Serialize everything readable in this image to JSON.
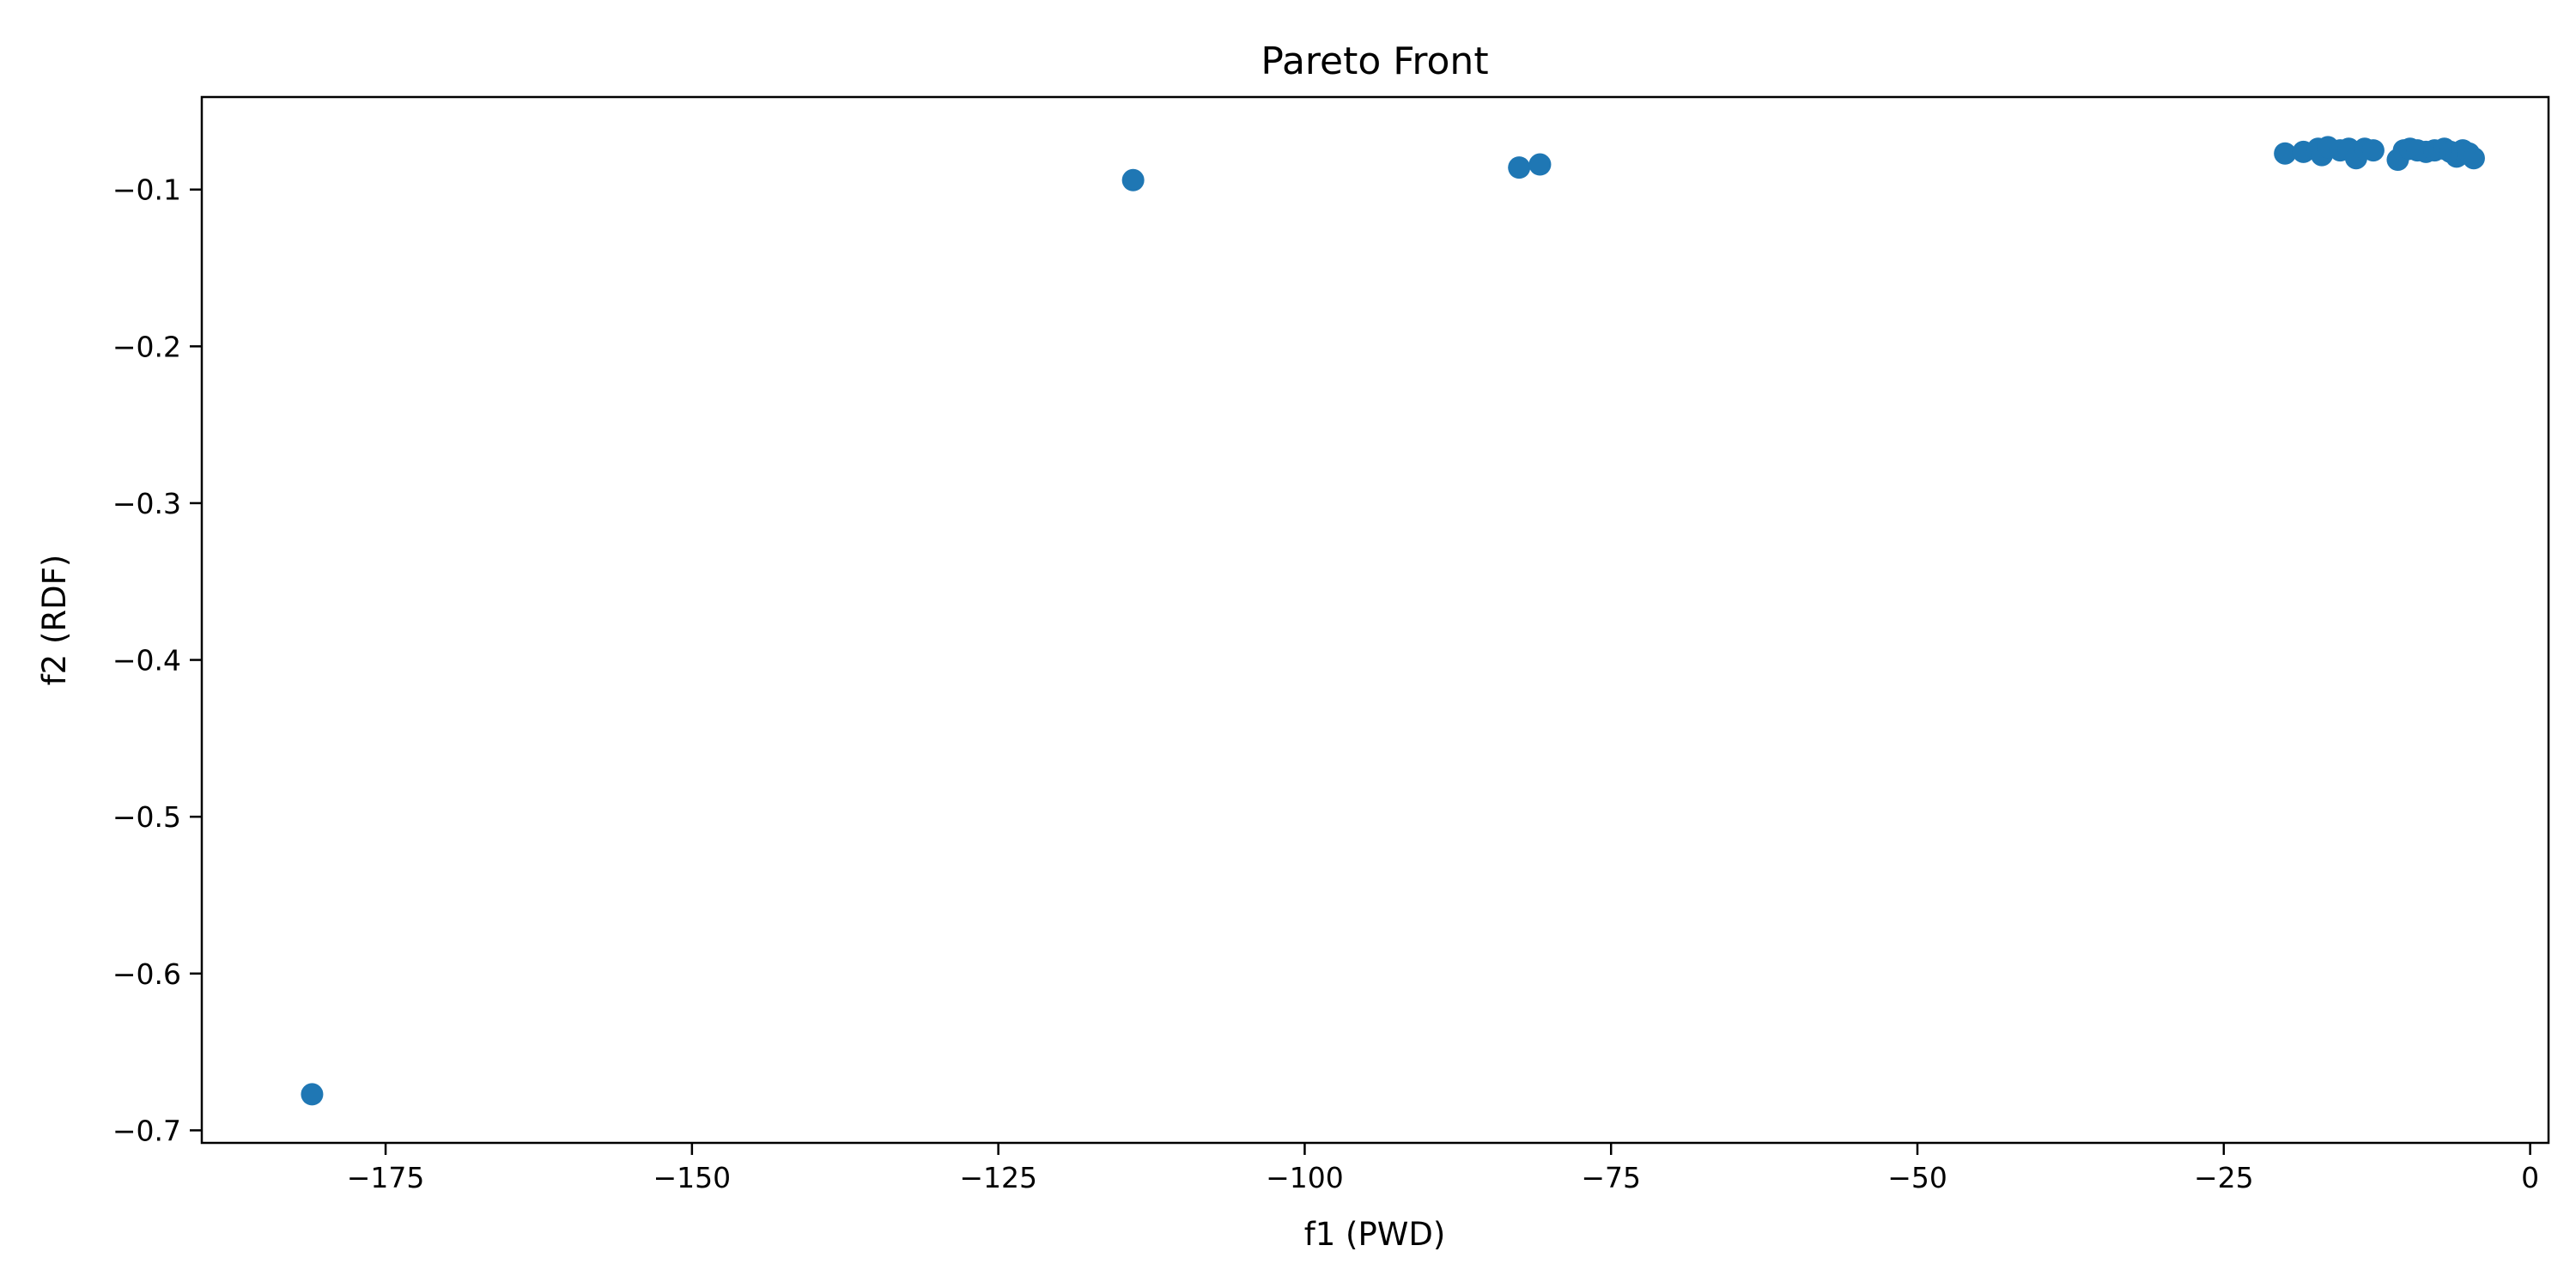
{
  "chart_data": {
    "type": "scatter",
    "title": "Pareto Front",
    "xlabel": "f1 (PWD)",
    "ylabel": "f2 (RDF)",
    "xlim": [
      -190,
      1.5
    ],
    "ylim": [
      -0.708,
      -0.041
    ],
    "xticks": [
      -175,
      -150,
      -125,
      -100,
      -75,
      -50,
      -25,
      0
    ],
    "yticks": [
      -0.1,
      -0.2,
      -0.3,
      -0.4,
      -0.5,
      -0.6,
      -0.7
    ],
    "xtick_labels": [
      "−175",
      "−150",
      "−125",
      "−100",
      "−75",
      "−50",
      "−25",
      "0"
    ],
    "ytick_labels": [
      "−0.1",
      "−0.2",
      "−0.3",
      "−0.4",
      "−0.5",
      "−0.6",
      "−0.7"
    ],
    "grid": false,
    "marker_color": "#1f77b4",
    "series": [
      {
        "points": [
          {
            "x": -181.0,
            "y": -0.677
          },
          {
            "x": -114.0,
            "y": -0.094
          },
          {
            "x": -82.5,
            "y": -0.086
          },
          {
            "x": -80.8,
            "y": -0.084
          },
          {
            "x": -20.0,
            "y": -0.077
          },
          {
            "x": -18.5,
            "y": -0.076
          },
          {
            "x": -17.3,
            "y": -0.074
          },
          {
            "x": -17.0,
            "y": -0.078
          },
          {
            "x": -16.5,
            "y": -0.073
          },
          {
            "x": -15.5,
            "y": -0.075
          },
          {
            "x": -14.8,
            "y": -0.074
          },
          {
            "x": -14.2,
            "y": -0.08
          },
          {
            "x": -13.5,
            "y": -0.074
          },
          {
            "x": -12.8,
            "y": -0.075
          },
          {
            "x": -10.8,
            "y": -0.081
          },
          {
            "x": -10.3,
            "y": -0.075
          },
          {
            "x": -9.8,
            "y": -0.074
          },
          {
            "x": -9.2,
            "y": -0.075
          },
          {
            "x": -8.5,
            "y": -0.076
          },
          {
            "x": -7.8,
            "y": -0.075
          },
          {
            "x": -7.0,
            "y": -0.074
          },
          {
            "x": -6.5,
            "y": -0.076
          },
          {
            "x": -6.0,
            "y": -0.079
          },
          {
            "x": -5.5,
            "y": -0.075
          },
          {
            "x": -5.0,
            "y": -0.077
          },
          {
            "x": -4.6,
            "y": -0.08
          }
        ]
      }
    ]
  }
}
